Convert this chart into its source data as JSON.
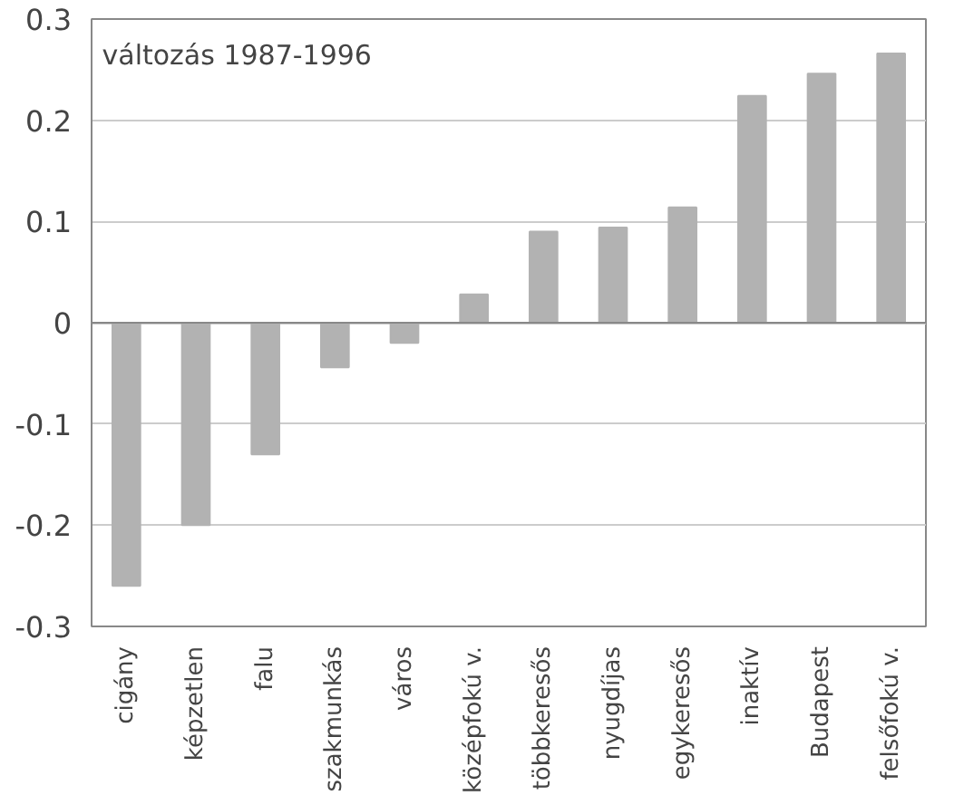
{
  "chart_data": {
    "type": "bar",
    "categories": [
      "cigány",
      "képzetlen",
      "falu",
      "szakmunkás",
      "város",
      "középfokú v.",
      "többkeresős",
      "nyugdíjas",
      "egykeresős",
      "inaktív",
      "Budapest",
      "felsőfokú v."
    ],
    "values": [
      -0.26,
      -0.2,
      -0.13,
      -0.044,
      -0.02,
      0.028,
      0.09,
      0.094,
      0.114,
      0.224,
      0.246,
      0.266
    ],
    "color": "#b2b2b2",
    "ylim": [
      -0.3,
      0.3
    ],
    "yticks": [
      {
        "value": -0.3,
        "label": "-0.3"
      },
      {
        "value": -0.2,
        "label": "-0.2"
      },
      {
        "value": -0.1,
        "label": "-0.1"
      },
      0,
      0.1,
      0.2,
      0.3
    ],
    "grid": "y",
    "annotations": [
      "változás 1987-1996"
    ]
  }
}
